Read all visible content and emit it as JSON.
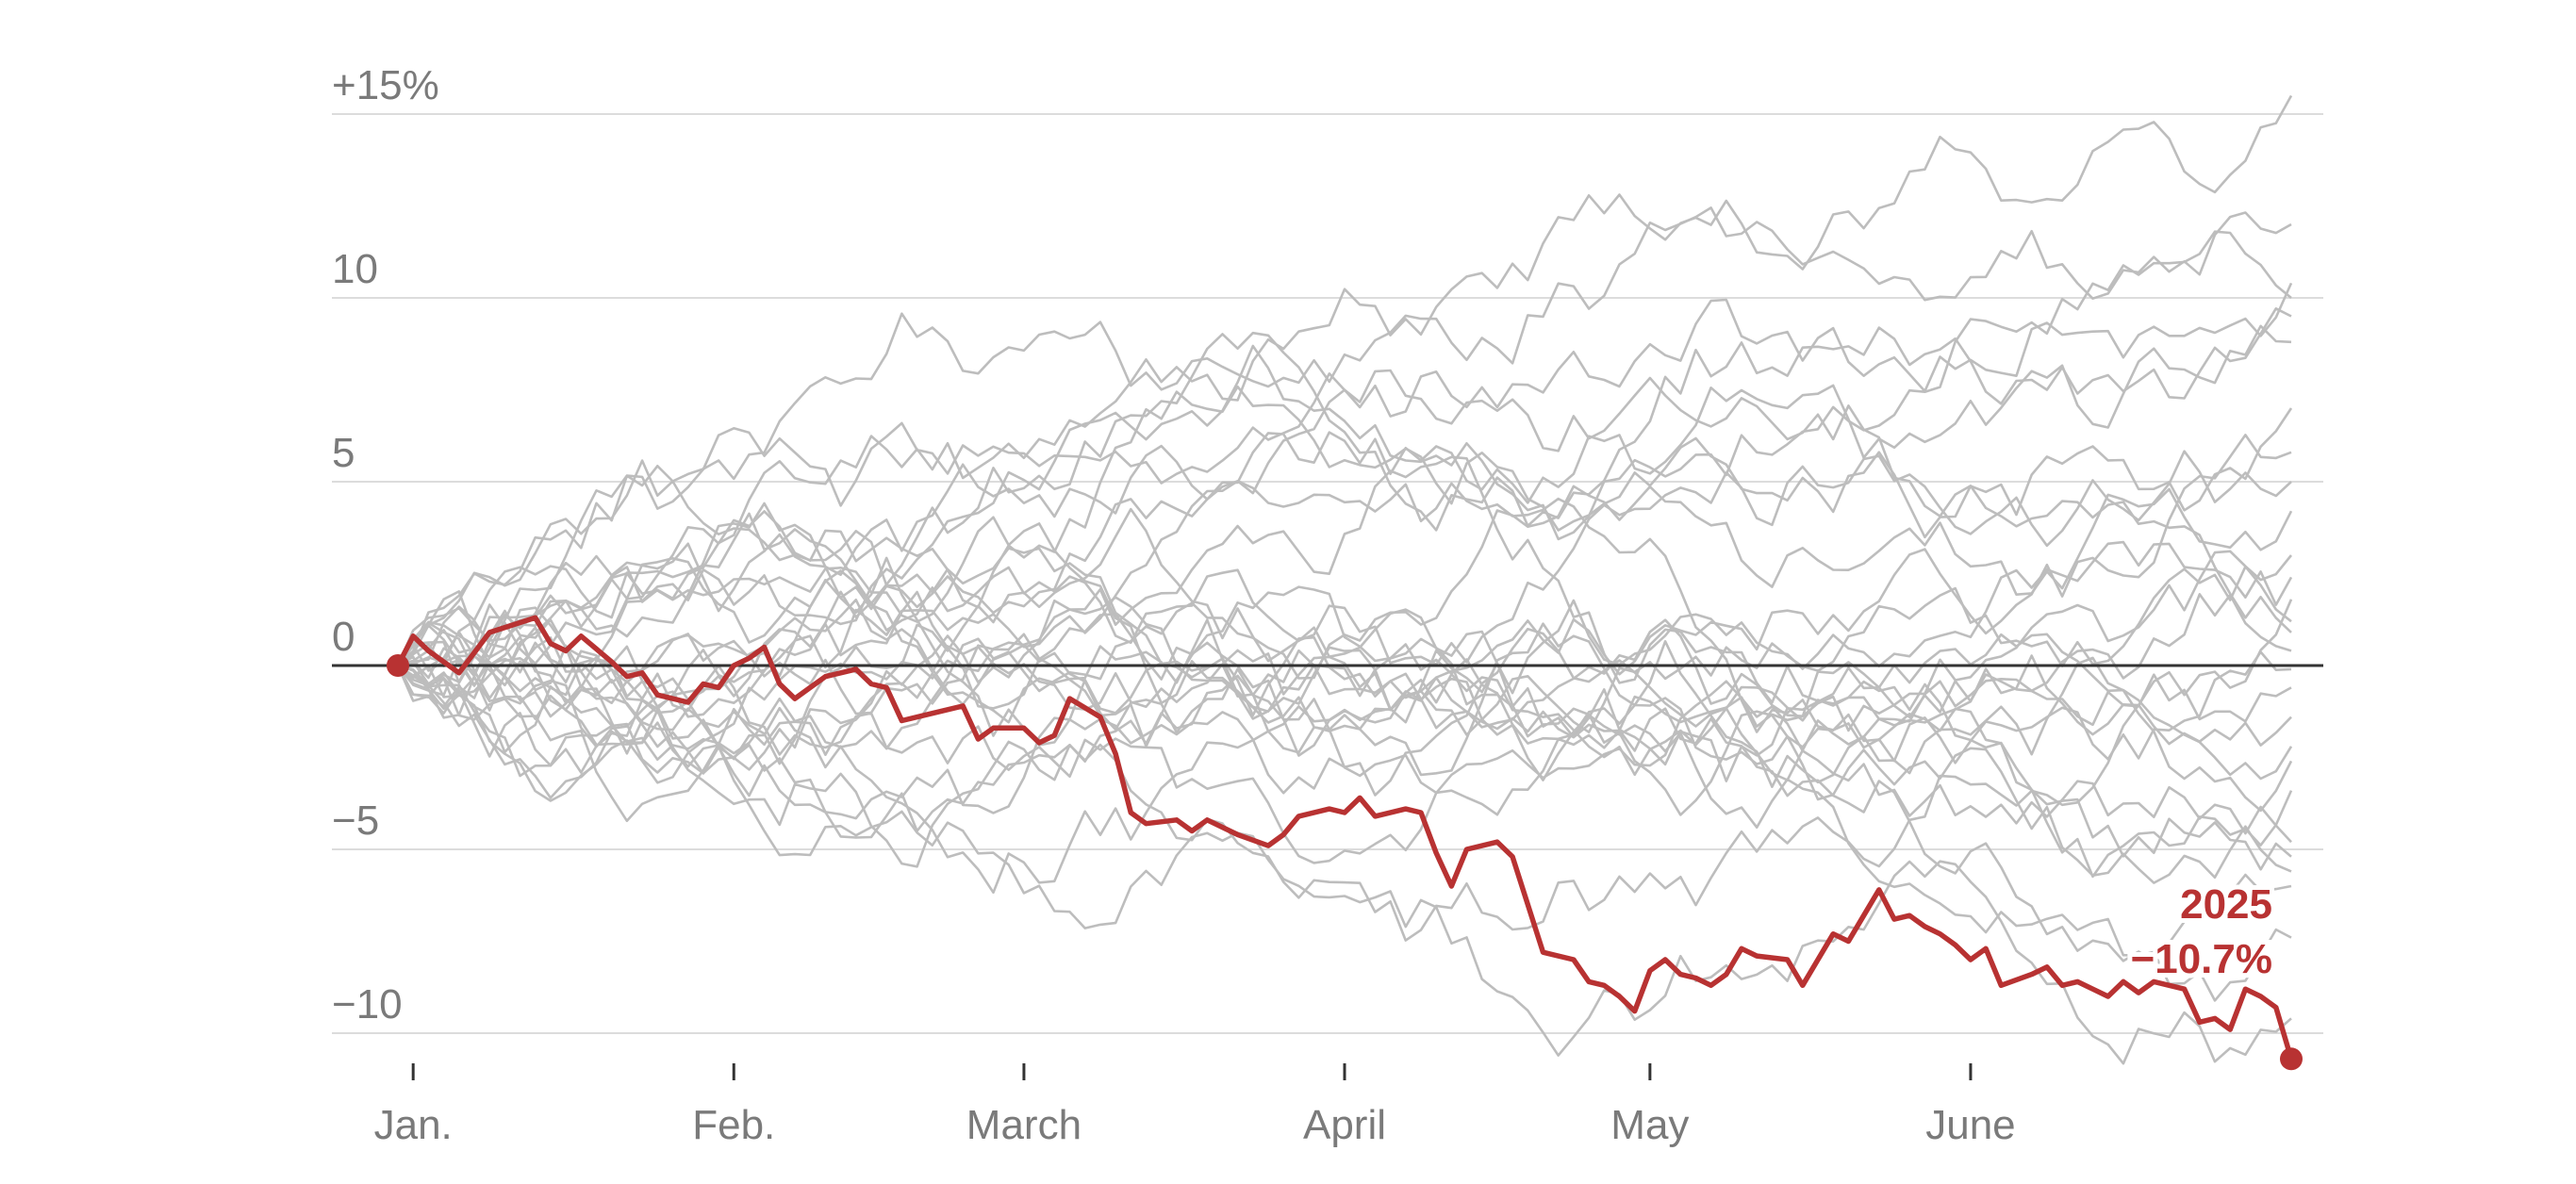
{
  "chart_data": {
    "type": "line",
    "title": "",
    "xlabel": "",
    "ylabel": "",
    "ylim": [
      -10.5,
      15.5
    ],
    "x_range_trading_days": [
      0,
      124
    ],
    "grid": true,
    "y_ticks": [
      {
        "value": 15,
        "label": "+15%"
      },
      {
        "value": 10,
        "label": "10"
      },
      {
        "value": 5,
        "label": "5"
      },
      {
        "value": 0,
        "label": "0"
      },
      {
        "value": -5,
        "label": "−5"
      },
      {
        "value": -10,
        "label": "−10"
      }
    ],
    "x_ticks": [
      {
        "day": 1,
        "label": "Jan."
      },
      {
        "day": 22,
        "label": "Feb."
      },
      {
        "day": 41,
        "label": "March"
      },
      {
        "day": 62,
        "label": "April"
      },
      {
        "day": 82,
        "label": "May"
      },
      {
        "day": 103,
        "label": "June"
      }
    ],
    "highlight_color": "#b83232",
    "background_line_color": "#bdbdbd",
    "highlight": {
      "name": "2025",
      "end_label": "−10.7%",
      "points": [
        [
          0,
          0
        ],
        [
          1,
          0.8
        ],
        [
          2,
          0.4
        ],
        [
          4,
          -0.2
        ],
        [
          6,
          0.9
        ],
        [
          9,
          1.3
        ],
        [
          10,
          0.6
        ],
        [
          11,
          0.4
        ],
        [
          12,
          0.8
        ],
        [
          14,
          0.1
        ],
        [
          15,
          -0.3
        ],
        [
          16,
          -0.2
        ],
        [
          17,
          -0.8
        ],
        [
          19,
          -1.0
        ],
        [
          20,
          -0.5
        ],
        [
          21,
          -0.6
        ],
        [
          22,
          0.0
        ],
        [
          23,
          0.2
        ],
        [
          24,
          0.5
        ],
        [
          25,
          -0.5
        ],
        [
          26,
          -0.9
        ],
        [
          27,
          -0.6
        ],
        [
          28,
          -0.3
        ],
        [
          30,
          -0.1
        ],
        [
          31,
          -0.5
        ],
        [
          32,
          -0.6
        ],
        [
          33,
          -1.5
        ],
        [
          35,
          -1.3
        ],
        [
          37,
          -1.1
        ],
        [
          38,
          -2.0
        ],
        [
          39,
          -1.7
        ],
        [
          41,
          -1.7
        ],
        [
          42,
          -2.1
        ],
        [
          43,
          -1.9
        ],
        [
          44,
          -0.9
        ],
        [
          46,
          -1.4
        ],
        [
          47,
          -2.4
        ],
        [
          48,
          -4.0
        ],
        [
          49,
          -4.3
        ],
        [
          51,
          -4.2
        ],
        [
          52,
          -4.5
        ],
        [
          53,
          -4.2
        ],
        [
          55,
          -4.6
        ],
        [
          57,
          -4.9
        ],
        [
          58,
          -4.6
        ],
        [
          59,
          -4.1
        ],
        [
          61,
          -3.9
        ],
        [
          62,
          -4.0
        ],
        [
          63,
          -3.6
        ],
        [
          64,
          -4.1
        ],
        [
          66,
          -3.9
        ],
        [
          67,
          -4.0
        ],
        [
          68,
          -5.1
        ],
        [
          69,
          -6.0
        ],
        [
          70,
          -5.0
        ],
        [
          72,
          -4.8
        ],
        [
          73,
          -5.2
        ],
        [
          75,
          -7.8
        ],
        [
          77,
          -8.0
        ],
        [
          78,
          -8.6
        ],
        [
          79,
          -8.7
        ],
        [
          80,
          -9.0
        ],
        [
          81,
          -9.4
        ],
        [
          82,
          -8.3
        ],
        [
          83,
          -8.0
        ],
        [
          84,
          -8.4
        ],
        [
          85,
          -8.5
        ],
        [
          86,
          -8.7
        ],
        [
          87,
          -8.4
        ],
        [
          88,
          -7.7
        ],
        [
          89,
          -7.9
        ],
        [
          91,
          -8.0
        ],
        [
          92,
          -8.7
        ],
        [
          93,
          -8.0
        ],
        [
          94,
          -7.3
        ],
        [
          95,
          -7.5
        ],
        [
          96,
          -6.8
        ],
        [
          97,
          -6.1
        ],
        [
          98,
          -6.9
        ],
        [
          99,
          -6.8
        ],
        [
          100,
          -7.1
        ],
        [
          101,
          -7.3
        ],
        [
          102,
          -7.6
        ],
        [
          103,
          -8.0
        ],
        [
          104,
          -7.7
        ],
        [
          105,
          -8.7
        ],
        [
          107,
          -8.4
        ],
        [
          108,
          -8.2
        ],
        [
          109,
          -8.7
        ],
        [
          110,
          -8.6
        ],
        [
          111,
          -8.8
        ],
        [
          112,
          -9.0
        ],
        [
          113,
          -8.6
        ],
        [
          114,
          -8.9
        ],
        [
          115,
          -8.6
        ],
        [
          116,
          -8.7
        ],
        [
          117,
          -8.8
        ],
        [
          118,
          -9.7
        ],
        [
          119,
          -9.6
        ],
        [
          120,
          -9.9
        ],
        [
          121,
          -8.8
        ],
        [
          122,
          -9.0
        ],
        [
          123,
          -9.3
        ],
        [
          124,
          -10.7
        ]
      ]
    },
    "background_series": [
      {
        "seed": 11,
        "final": 15.5,
        "drift": 0.123
      },
      {
        "seed": 12,
        "final": 10.4,
        "drift": 0.084
      },
      {
        "seed": 13,
        "final": 10.0,
        "drift": 0.081
      },
      {
        "seed": 14,
        "final": 9.5,
        "drift": 0.077
      },
      {
        "seed": 15,
        "final": 8.8,
        "drift": 0.071
      },
      {
        "seed": 16,
        "final": 5.8,
        "drift": 0.047
      },
      {
        "seed": 17,
        "final": 5.0,
        "drift": 0.04
      },
      {
        "seed": 18,
        "final": 3.0,
        "drift": 0.024
      },
      {
        "seed": 19,
        "final": 2.4,
        "drift": 0.019
      },
      {
        "seed": 20,
        "final": 1.8,
        "drift": 0.015
      },
      {
        "seed": 21,
        "final": 1.2,
        "drift": 0.01
      },
      {
        "seed": 22,
        "final": 0.4,
        "drift": 0.003
      },
      {
        "seed": 23,
        "final": -0.1,
        "drift": -0.001
      },
      {
        "seed": 24,
        "final": -0.6,
        "drift": -0.005
      },
      {
        "seed": 25,
        "final": -1.4,
        "drift": -0.011
      },
      {
        "seed": 26,
        "final": -2.2,
        "drift": -0.018
      },
      {
        "seed": 27,
        "final": -2.6,
        "drift": -0.021
      },
      {
        "seed": 28,
        "final": -4.8,
        "drift": -0.039
      },
      {
        "seed": 29,
        "final": -5.2,
        "drift": -0.042
      },
      {
        "seed": 30,
        "final": -5.6,
        "drift": -0.045
      },
      {
        "seed": 31,
        "final": -6.0,
        "drift": -0.048
      },
      {
        "seed": 32,
        "final": -9.6,
        "drift": -0.077
      },
      {
        "seed": 33,
        "final": 7.0,
        "drift": 0.056
      },
      {
        "seed": 34,
        "final": 4.2,
        "drift": 0.034
      },
      {
        "seed": 35,
        "final": -3.4,
        "drift": -0.027
      },
      {
        "seed": 36,
        "final": 0.9,
        "drift": 0.007
      },
      {
        "seed": 37,
        "final": -7.4,
        "drift": -0.06
      },
      {
        "seed": 38,
        "final": 12.0,
        "drift": 0.097
      }
    ]
  }
}
